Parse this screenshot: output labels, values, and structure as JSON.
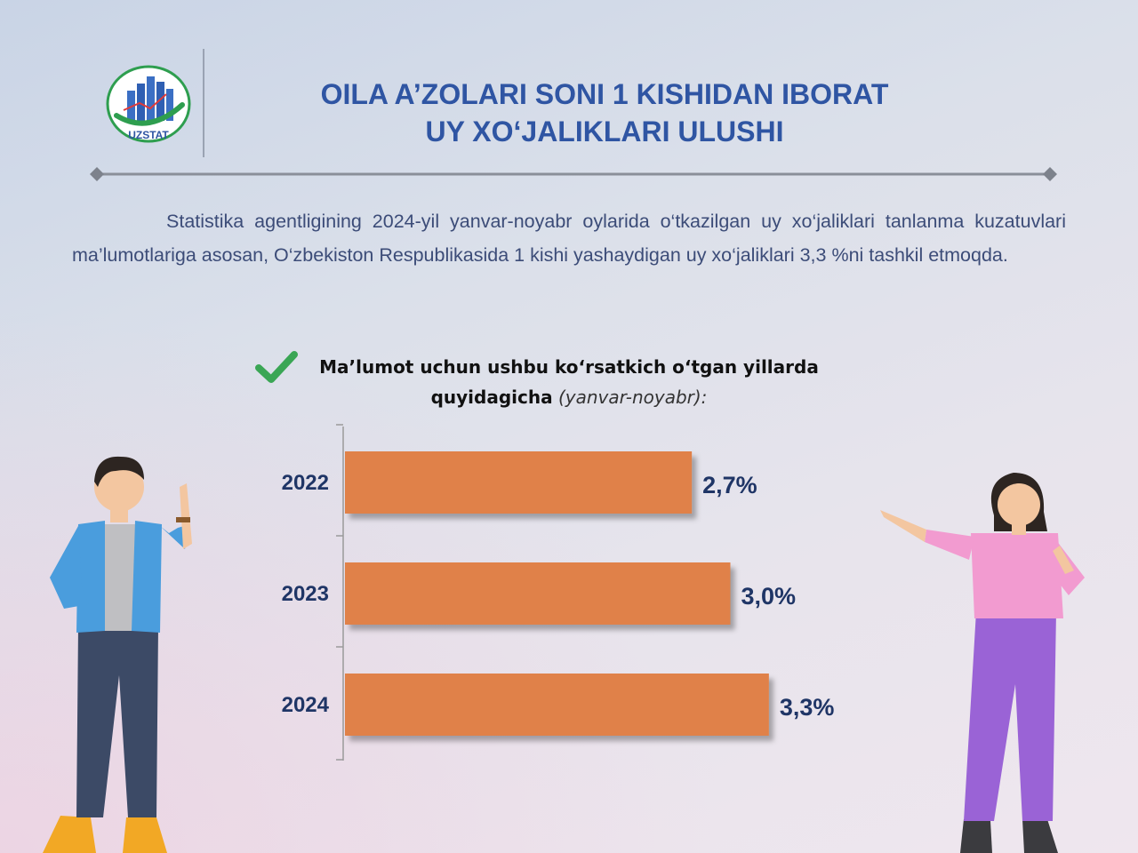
{
  "header": {
    "logo_text": "UZSTAT",
    "title": "OILA A’ZOLARI SONI  1 KISHIDAN IBORAT\nUY XO‘JALIKLARI ULUSHI"
  },
  "intro_text": "Statistika agentligining 2024-yil yanvar-noyabr oylarida o‘tkazilgan uy xo‘jaliklari tanlanma kuzatuvlari ma’lumotlariga asosan, O‘zbekiston Respublikasida 1 kishi yashaydigan uy xo‘jaliklari 3,3 %ni tashkil etmoqda.",
  "subtitle": {
    "bold": "Ma’lumot uchun ushbu ko‘rsatkich o‘tgan yillarda quyidagicha",
    "italic": "(yanvar-noyabr):"
  },
  "colors": {
    "title": "#2f55a3",
    "bar": "#e08148",
    "value_label": "#1f3566",
    "year_label": "#1f3566",
    "check": "#3aa655"
  },
  "chart_data": {
    "type": "bar",
    "orientation": "horizontal",
    "categories": [
      "2022",
      "2023",
      "2024"
    ],
    "values": [
      2.7,
      3.0,
      3.3
    ],
    "value_labels": [
      "2,7%",
      "3,0%",
      "3,3%"
    ],
    "unit": "%",
    "xlim": [
      0,
      3.5
    ],
    "grid": false,
    "legend": "none"
  }
}
